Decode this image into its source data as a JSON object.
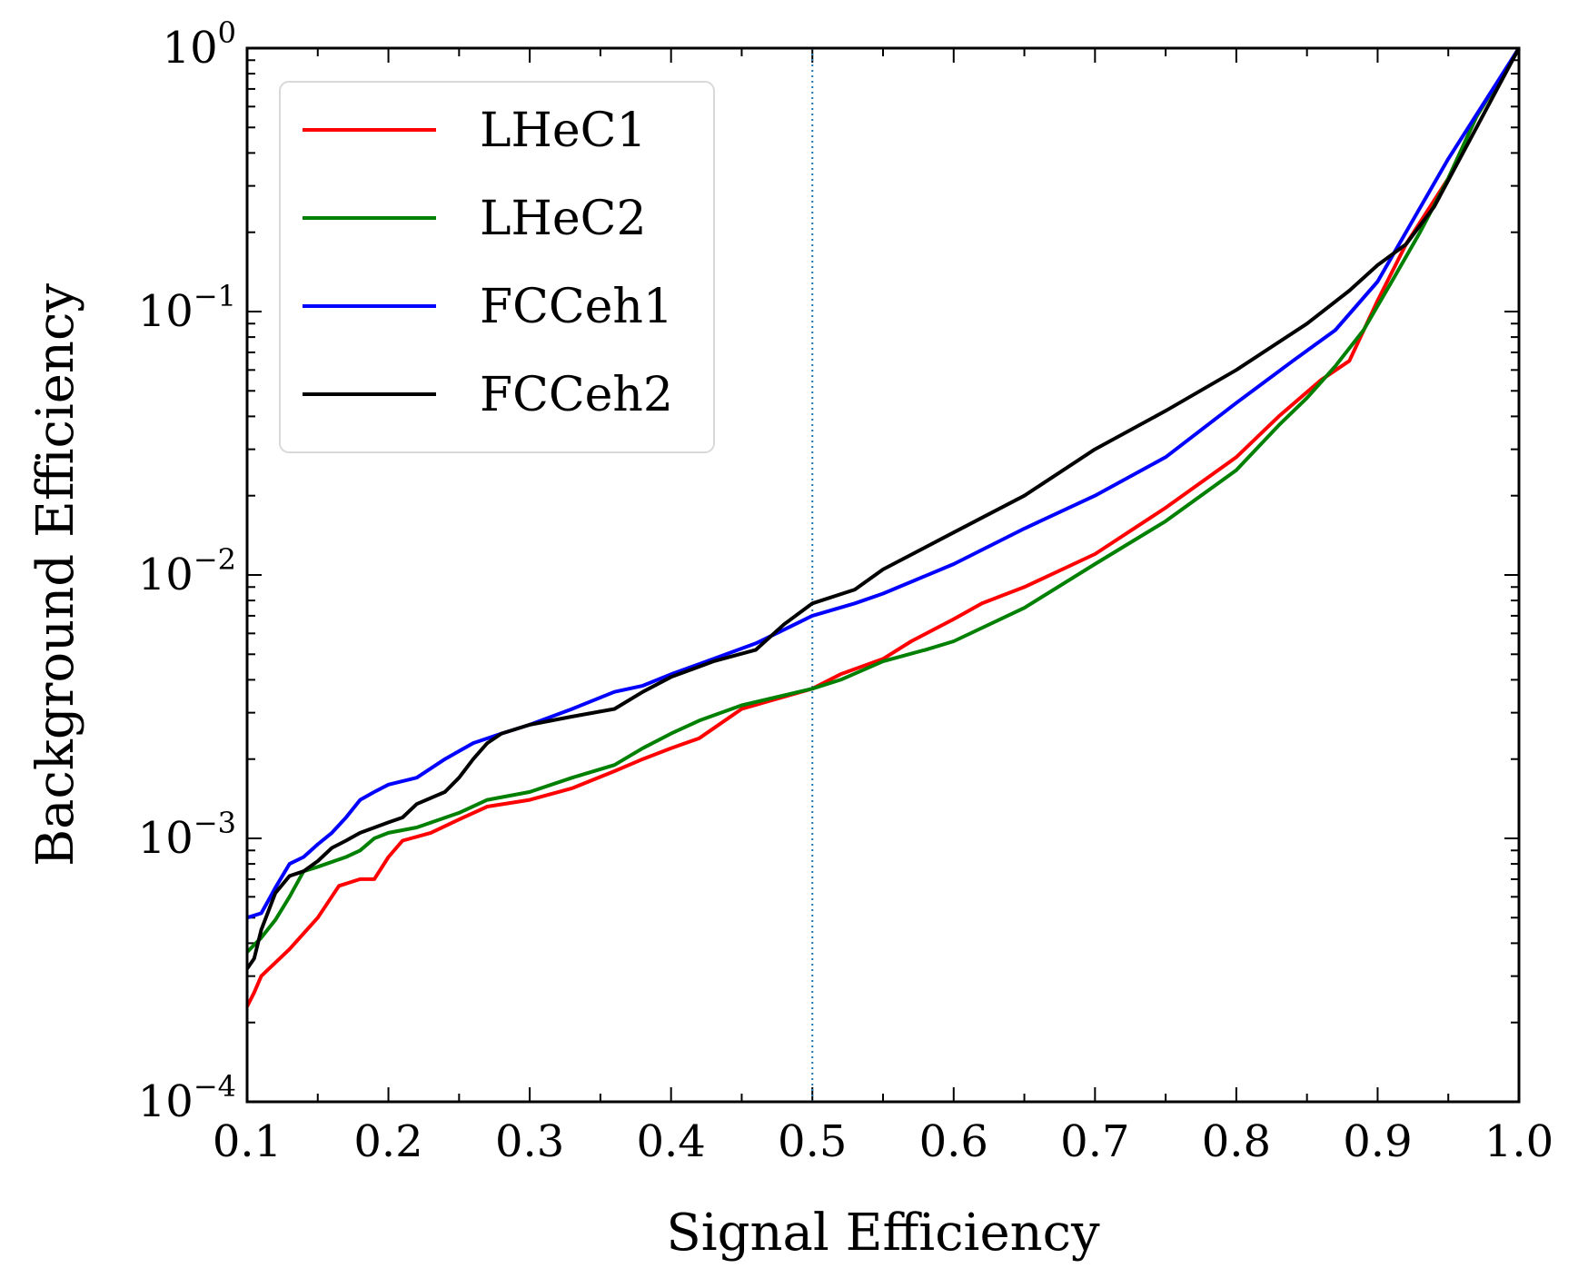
{
  "chart_data": {
    "type": "line",
    "title": "",
    "xlabel": "Signal Efficiency",
    "ylabel": "Background Efficiency",
    "xlim": [
      0.1,
      1.0
    ],
    "ylim": [
      0.0001,
      1
    ],
    "yscale": "log",
    "x_ticks": [
      {
        "value": 0.1,
        "label": "0.1"
      },
      {
        "value": 0.2,
        "label": "0.2"
      },
      {
        "value": 0.3,
        "label": "0.3"
      },
      {
        "value": 0.4,
        "label": "0.4"
      },
      {
        "value": 0.5,
        "label": "0.5"
      },
      {
        "value": 0.6,
        "label": "0.6"
      },
      {
        "value": 0.7,
        "label": "0.7"
      },
      {
        "value": 0.8,
        "label": "0.8"
      },
      {
        "value": 0.9,
        "label": "0.9"
      },
      {
        "value": 1.0,
        "label": "1.0"
      }
    ],
    "y_ticks": [
      {
        "value": 1,
        "base": "10",
        "exp": "0"
      },
      {
        "value": 0.1,
        "base": "10",
        "exp": "−1"
      },
      {
        "value": 0.01,
        "base": "10",
        "exp": "−2"
      },
      {
        "value": 0.001,
        "base": "10",
        "exp": "−3"
      },
      {
        "value": 0.0001,
        "base": "10",
        "exp": "−4"
      }
    ],
    "reference_line": {
      "x": 0.5,
      "color": "#1f77b4",
      "style": "dotted"
    },
    "legend_position": "upper-left",
    "series": [
      {
        "name": "LHeC1",
        "color": "#ff0000",
        "x": [
          0.1,
          0.105,
          0.11,
          0.13,
          0.15,
          0.165,
          0.18,
          0.19,
          0.2,
          0.21,
          0.23,
          0.25,
          0.27,
          0.3,
          0.33,
          0.36,
          0.38,
          0.4,
          0.42,
          0.45,
          0.5,
          0.52,
          0.55,
          0.57,
          0.6,
          0.62,
          0.65,
          0.7,
          0.75,
          0.8,
          0.83,
          0.86,
          0.88,
          0.9,
          0.92,
          0.95,
          0.97,
          1.0
        ],
        "y": [
          0.00023,
          0.00026,
          0.0003,
          0.00038,
          0.0005,
          0.00066,
          0.0007,
          0.0007,
          0.00085,
          0.00098,
          0.00105,
          0.00118,
          0.00132,
          0.0014,
          0.00155,
          0.0018,
          0.002,
          0.0022,
          0.0024,
          0.0031,
          0.0037,
          0.0042,
          0.0048,
          0.0056,
          0.0068,
          0.0078,
          0.009,
          0.012,
          0.018,
          0.028,
          0.04,
          0.055,
          0.065,
          0.11,
          0.18,
          0.32,
          0.55,
          1.0
        ]
      },
      {
        "name": "LHeC2",
        "color": "#008000",
        "x": [
          0.1,
          0.11,
          0.12,
          0.13,
          0.14,
          0.15,
          0.17,
          0.18,
          0.19,
          0.2,
          0.22,
          0.25,
          0.27,
          0.3,
          0.33,
          0.36,
          0.38,
          0.4,
          0.42,
          0.45,
          0.5,
          0.52,
          0.55,
          0.58,
          0.6,
          0.65,
          0.7,
          0.75,
          0.8,
          0.83,
          0.85,
          0.87,
          0.89,
          0.91,
          0.93,
          0.95,
          0.97,
          1.0
        ],
        "y": [
          0.00037,
          0.00042,
          0.00049,
          0.0006,
          0.00075,
          0.00078,
          0.00085,
          0.0009,
          0.001,
          0.00105,
          0.0011,
          0.00125,
          0.0014,
          0.0015,
          0.0017,
          0.0019,
          0.0022,
          0.0025,
          0.0028,
          0.0032,
          0.0037,
          0.004,
          0.0047,
          0.0052,
          0.0056,
          0.0075,
          0.011,
          0.016,
          0.025,
          0.037,
          0.047,
          0.062,
          0.085,
          0.13,
          0.2,
          0.32,
          0.55,
          1.0
        ]
      },
      {
        "name": "FCCeh1",
        "color": "#0000ff",
        "x": [
          0.1,
          0.11,
          0.115,
          0.12,
          0.13,
          0.14,
          0.15,
          0.16,
          0.17,
          0.18,
          0.19,
          0.2,
          0.22,
          0.24,
          0.26,
          0.28,
          0.3,
          0.33,
          0.36,
          0.38,
          0.4,
          0.43,
          0.46,
          0.48,
          0.5,
          0.53,
          0.55,
          0.6,
          0.65,
          0.7,
          0.75,
          0.8,
          0.84,
          0.87,
          0.9,
          0.92,
          0.95,
          1.0
        ],
        "y": [
          0.0005,
          0.00052,
          0.00058,
          0.00065,
          0.0008,
          0.00085,
          0.00095,
          0.00105,
          0.0012,
          0.0014,
          0.0015,
          0.0016,
          0.0017,
          0.002,
          0.0023,
          0.0025,
          0.0027,
          0.0031,
          0.0036,
          0.0038,
          0.0042,
          0.0048,
          0.0055,
          0.0062,
          0.007,
          0.0078,
          0.0085,
          0.011,
          0.015,
          0.02,
          0.028,
          0.045,
          0.065,
          0.085,
          0.13,
          0.2,
          0.38,
          1.0
        ]
      },
      {
        "name": "FCCeh2",
        "color": "#000000",
        "x": [
          0.1,
          0.105,
          0.11,
          0.12,
          0.13,
          0.14,
          0.15,
          0.16,
          0.17,
          0.18,
          0.2,
          0.21,
          0.22,
          0.24,
          0.25,
          0.26,
          0.27,
          0.28,
          0.3,
          0.33,
          0.36,
          0.38,
          0.4,
          0.43,
          0.46,
          0.48,
          0.5,
          0.53,
          0.55,
          0.6,
          0.65,
          0.7,
          0.75,
          0.8,
          0.85,
          0.88,
          0.9,
          0.92,
          0.94,
          1.0
        ],
        "y": [
          0.00032,
          0.00035,
          0.00045,
          0.00062,
          0.00072,
          0.00075,
          0.00082,
          0.00092,
          0.00098,
          0.00105,
          0.00115,
          0.0012,
          0.00135,
          0.0015,
          0.0017,
          0.002,
          0.0023,
          0.0025,
          0.0027,
          0.0029,
          0.0031,
          0.0036,
          0.0041,
          0.0047,
          0.0052,
          0.0065,
          0.0078,
          0.0088,
          0.0105,
          0.0145,
          0.02,
          0.03,
          0.042,
          0.06,
          0.09,
          0.12,
          0.15,
          0.18,
          0.25,
          1.0
        ]
      }
    ]
  }
}
